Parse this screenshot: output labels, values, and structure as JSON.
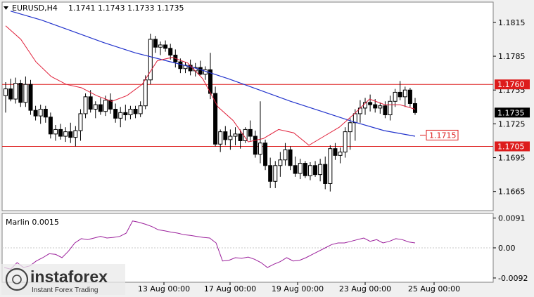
{
  "colors": {
    "background": "#ffffff",
    "frame": "#f0f0f0",
    "candle": "#000000",
    "ma_blue": "#2233cc",
    "ma_red": "#e0203a",
    "level_line": "#dd1c1c",
    "oscillator": "#9b1f9b"
  },
  "header": {
    "symbol_label": "EURUSD,H4",
    "ohlc": "1.1741 1.1743 1.1733 1.1735",
    "triangle_icon": "down-triangle"
  },
  "watermark": {
    "brand": "instaforex",
    "tagline": "Instant Forex Trading"
  },
  "chart_data": [
    {
      "type": "candlestick",
      "title": "EURUSD,H4",
      "ylim": [
        1.1648,
        1.1833
      ],
      "y_ticks": [
        "1.1815",
        "1.1785",
        "1.1755",
        "1.1725",
        "1.1695",
        "1.1665"
      ],
      "x_ticks": [
        "13 Aug 00:00",
        "17 Aug 00:00",
        "19 Aug 00:00",
        "23 Aug 00:00",
        "25 Aug 00:00"
      ],
      "current_price": "1.1735",
      "levels": [
        {
          "value": 1.176,
          "label": "1.1760"
        },
        {
          "value": 1.1705,
          "label": "1.1705"
        }
      ],
      "annotation": {
        "value": 1.1715,
        "label": "1.1715"
      },
      "candles": [
        [
          1.175,
          1.1762,
          1.1735,
          1.1756
        ],
        [
          1.1756,
          1.1765,
          1.1745,
          1.1747
        ],
        [
          1.1747,
          1.1766,
          1.1743,
          1.1761
        ],
        [
          1.1761,
          1.1764,
          1.174,
          1.1744
        ],
        [
          1.1744,
          1.1767,
          1.174,
          1.176
        ],
        [
          1.176,
          1.1764,
          1.1733,
          1.1737
        ],
        [
          1.1737,
          1.1741,
          1.1728,
          1.1732
        ],
        [
          1.1732,
          1.1742,
          1.1725,
          1.1738
        ],
        [
          1.1738,
          1.1741,
          1.1726,
          1.1731
        ],
        [
          1.1731,
          1.1735,
          1.1712,
          1.1716
        ],
        [
          1.1716,
          1.1724,
          1.171,
          1.172
        ],
        [
          1.172,
          1.1725,
          1.1711,
          1.1714
        ],
        [
          1.1714,
          1.1722,
          1.1709,
          1.1718
        ],
        [
          1.1718,
          1.1726,
          1.1708,
          1.1713
        ],
        [
          1.1713,
          1.1723,
          1.1705,
          1.1719
        ],
        [
          1.1719,
          1.1738,
          1.171,
          1.1734
        ],
        [
          1.1734,
          1.1752,
          1.173,
          1.1749
        ],
        [
          1.1749,
          1.1755,
          1.1735,
          1.1738
        ],
        [
          1.1738,
          1.1745,
          1.173,
          1.1742
        ],
        [
          1.1742,
          1.1748,
          1.1733,
          1.1736
        ],
        [
          1.1736,
          1.175,
          1.1732,
          1.1746
        ],
        [
          1.1746,
          1.1752,
          1.1734,
          1.1738
        ],
        [
          1.1738,
          1.1743,
          1.1726,
          1.173
        ],
        [
          1.173,
          1.174,
          1.1722,
          1.1735
        ],
        [
          1.1735,
          1.1742,
          1.1728,
          1.1733
        ],
        [
          1.1733,
          1.1741,
          1.1729,
          1.1738
        ],
        [
          1.1738,
          1.1741,
          1.173,
          1.1734
        ],
        [
          1.1734,
          1.1745,
          1.1731,
          1.1741
        ],
        [
          1.1741,
          1.1768,
          1.1738,
          1.1764
        ],
        [
          1.1764,
          1.1805,
          1.176,
          1.18
        ],
        [
          1.18,
          1.1803,
          1.1788,
          1.1793
        ],
        [
          1.1793,
          1.1798,
          1.1786,
          1.1795
        ],
        [
          1.1795,
          1.1799,
          1.1789,
          1.1792
        ],
        [
          1.1792,
          1.1796,
          1.1782,
          1.1786
        ],
        [
          1.1786,
          1.1791,
          1.1775,
          1.178
        ],
        [
          1.178,
          1.1783,
          1.177,
          1.1774
        ],
        [
          1.1774,
          1.178,
          1.177,
          1.1777
        ],
        [
          1.1777,
          1.1782,
          1.1768,
          1.1772
        ],
        [
          1.1772,
          1.1779,
          1.1767,
          1.1775
        ],
        [
          1.1775,
          1.1781,
          1.1768,
          1.1769
        ],
        [
          1.1769,
          1.1776,
          1.1764,
          1.1773
        ],
        [
          1.1773,
          1.1788,
          1.1747,
          1.1752
        ],
        [
          1.1752,
          1.1758,
          1.1705,
          1.1707
        ],
        [
          1.1707,
          1.172,
          1.17,
          1.1718
        ],
        [
          1.1718,
          1.1723,
          1.1706,
          1.1711
        ],
        [
          1.1711,
          1.172,
          1.1702,
          1.1714
        ],
        [
          1.1714,
          1.1722,
          1.1706,
          1.1716
        ],
        [
          1.1716,
          1.172,
          1.1703,
          1.171
        ],
        [
          1.171,
          1.1722,
          1.1708,
          1.172
        ],
        [
          1.172,
          1.1728,
          1.171,
          1.1714
        ],
        [
          1.1714,
          1.1719,
          1.1695,
          1.1698
        ],
        [
          1.1698,
          1.1745,
          1.169,
          1.1708
        ],
        [
          1.1708,
          1.1711,
          1.1684,
          1.1688
        ],
        [
          1.1688,
          1.1695,
          1.1668,
          1.1674
        ],
        [
          1.1674,
          1.1692,
          1.1668,
          1.1688
        ],
        [
          1.1688,
          1.17,
          1.1678,
          1.1693
        ],
        [
          1.1693,
          1.1708,
          1.1688,
          1.1702
        ],
        [
          1.1702,
          1.1705,
          1.1684,
          1.1688
        ],
        [
          1.1688,
          1.1696,
          1.1678,
          1.1681
        ],
        [
          1.1681,
          1.1694,
          1.1676,
          1.169
        ],
        [
          1.169,
          1.1692,
          1.1677,
          1.1679
        ],
        [
          1.1679,
          1.1691,
          1.1675,
          1.1688
        ],
        [
          1.1688,
          1.1692,
          1.1678,
          1.168
        ],
        [
          1.168,
          1.1694,
          1.1674,
          1.1689
        ],
        [
          1.1689,
          1.1696,
          1.1667,
          1.1672
        ],
        [
          1.1672,
          1.1706,
          1.1665,
          1.1703
        ],
        [
          1.1703,
          1.1708,
          1.1693,
          1.1697
        ],
        [
          1.1697,
          1.1704,
          1.169,
          1.17
        ],
        [
          1.17,
          1.1722,
          1.1695,
          1.1718
        ],
        [
          1.1718,
          1.173,
          1.1702,
          1.1726
        ],
        [
          1.1726,
          1.1738,
          1.171,
          1.1734
        ],
        [
          1.1734,
          1.1746,
          1.1726,
          1.1739
        ],
        [
          1.1739,
          1.1748,
          1.1733,
          1.1744
        ],
        [
          1.1744,
          1.1751,
          1.1736,
          1.1742
        ],
        [
          1.1742,
          1.1747,
          1.1735,
          1.1739
        ],
        [
          1.1739,
          1.1744,
          1.1734,
          1.1741
        ],
        [
          1.1741,
          1.1745,
          1.173,
          1.1733
        ],
        [
          1.1733,
          1.175,
          1.1728,
          1.1745
        ],
        [
          1.1745,
          1.1756,
          1.174,
          1.1753
        ],
        [
          1.1753,
          1.1763,
          1.1746,
          1.1749
        ],
        [
          1.1749,
          1.1758,
          1.174,
          1.1755
        ],
        [
          1.1755,
          1.1757,
          1.174,
          1.1743
        ],
        [
          1.1743,
          1.1748,
          1.1733,
          1.1735
        ]
      ],
      "ma_blue": [
        1.1825,
        1.1817,
        1.1807,
        1.1797,
        1.1788,
        1.1781,
        1.1774,
        1.1765,
        1.1755,
        1.1745,
        1.1736,
        1.1727,
        1.1719,
        1.1714
      ],
      "ma_red": [
        1.1812,
        1.18,
        1.178,
        1.1767,
        1.176,
        1.1757,
        1.175,
        1.1745,
        1.175,
        1.176,
        1.1781,
        1.1784,
        1.1779,
        1.1765,
        1.174,
        1.1728,
        1.1709,
        1.1712,
        1.172,
        1.1717,
        1.1706,
        1.1714,
        1.1722,
        1.1734,
        1.1747,
        1.1742,
        1.1742,
        1.1738
      ]
    },
    {
      "type": "line",
      "title": "Marlin 0.0015",
      "ylim": [
        -0.0105,
        0.0105
      ],
      "y_ticks": [
        "0.0091",
        "0.00",
        "-0.0092"
      ],
      "values": [
        -0.006,
        -0.0065,
        -0.0045,
        -0.006,
        -0.0055,
        -0.004,
        -0.003,
        -0.0018,
        -0.002,
        -0.003,
        -0.001,
        0.0015,
        0.0028,
        0.0025,
        0.003,
        0.0035,
        0.003,
        0.0032,
        0.0035,
        0.0045,
        0.0082,
        0.0078,
        0.0072,
        0.0065,
        0.0055,
        0.0052,
        0.0048,
        0.0045,
        0.004,
        0.0038,
        0.0035,
        0.0032,
        0.003,
        0.0015,
        -0.004,
        -0.0038,
        -0.003,
        -0.0032,
        -0.0028,
        -0.0035,
        -0.0045,
        -0.006,
        -0.005,
        -0.0042,
        -0.003,
        -0.004,
        -0.0038,
        -0.003,
        -0.002,
        -0.001,
        0.0,
        0.001,
        0.0015,
        0.0015,
        0.002,
        0.0025,
        0.003,
        0.002,
        0.0025,
        0.0015,
        0.002,
        0.0028,
        0.0025,
        0.0018,
        0.0015
      ]
    }
  ]
}
